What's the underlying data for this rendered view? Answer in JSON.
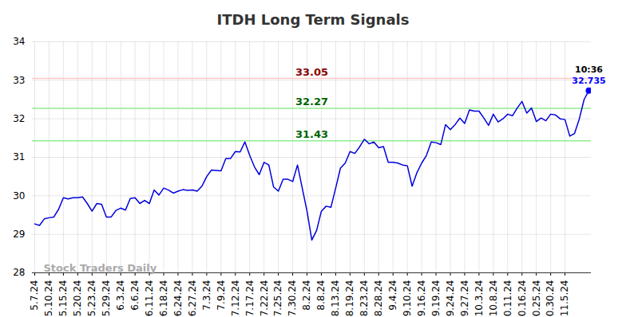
{
  "chart_data": {
    "type": "line",
    "title": "ITDH Long Term Signals",
    "color": "#0000dd",
    "grid": true,
    "categories": [
      "5.7.24",
      null,
      null,
      "5.10.24",
      null,
      null,
      "5.15.24",
      null,
      null,
      "5.20.24",
      null,
      null,
      "5.23.24",
      null,
      null,
      "5.29.24",
      null,
      null,
      "6.3.24",
      null,
      null,
      "6.6.24",
      null,
      null,
      "6.11.24",
      null,
      null,
      "6.18.24",
      null,
      null,
      "6.24.24",
      null,
      null,
      "6.27.24",
      null,
      null,
      "7.3.24",
      null,
      null,
      "7.9.24",
      null,
      null,
      "7.12.24",
      null,
      null,
      "7.17.24",
      null,
      null,
      "7.22.24",
      null,
      null,
      "7.25.24",
      null,
      null,
      "7.30.24",
      null,
      null,
      "8.2.24",
      null,
      null,
      "8.8.24",
      null,
      null,
      "8.13.24",
      null,
      null,
      "8.19.24",
      null,
      null,
      "8.23.24",
      null,
      null,
      "8.28.24",
      null,
      null,
      "9.4.24",
      null,
      null,
      "9.10.24",
      null,
      null,
      "9.16.24",
      null,
      null,
      "9.19.24",
      null,
      null,
      "9.24.24",
      null,
      null,
      "9.27.24",
      null,
      null,
      "10.3.24",
      null,
      null,
      "10.8.24",
      null,
      null,
      "10.11.24",
      null,
      null,
      "10.16.24",
      null,
      null,
      "10.25.24",
      null,
      null,
      "10.30.24",
      null,
      null,
      "11.5.24",
      null,
      null,
      null,
      null,
      null
    ],
    "values": [
      29.27,
      29.23,
      29.4,
      29.43,
      29.45,
      29.65,
      29.95,
      29.92,
      29.95,
      29.95,
      29.97,
      29.8,
      29.6,
      29.8,
      29.78,
      29.45,
      29.45,
      29.62,
      29.68,
      29.63,
      29.93,
      29.95,
      29.8,
      29.88,
      29.8,
      30.15,
      30.02,
      30.2,
      30.15,
      30.07,
      30.12,
      30.16,
      30.14,
      30.15,
      30.12,
      30.25,
      30.5,
      30.67,
      30.66,
      30.65,
      30.97,
      30.97,
      31.15,
      31.14,
      31.4,
      31.05,
      30.75,
      30.55,
      30.87,
      30.8,
      30.23,
      30.12,
      30.43,
      30.43,
      30.37,
      30.8,
      30.2,
      29.6,
      28.85,
      29.1,
      29.6,
      29.73,
      29.7,
      30.2,
      30.72,
      30.85,
      31.15,
      31.1,
      31.27,
      31.47,
      31.35,
      31.4,
      31.25,
      31.28,
      30.87,
      30.87,
      30.85,
      30.8,
      30.78,
      30.25,
      30.6,
      30.85,
      31.05,
      31.4,
      31.38,
      31.33,
      31.85,
      31.72,
      31.85,
      32.02,
      31.88,
      32.23,
      32.2,
      32.2,
      32.02,
      31.83,
      32.12,
      31.92,
      32.0,
      32.12,
      32.08,
      32.28,
      32.45,
      32.15,
      32.28,
      31.93,
      32.02,
      31.95,
      32.12,
      32.1,
      32.0,
      31.98,
      31.55,
      31.62,
      32.0,
      32.5,
      32.735
    ],
    "ylim": [
      28,
      34
    ],
    "yticks": [
      28,
      29,
      30,
      31,
      32,
      33,
      34
    ],
    "levels": [
      {
        "value": 33.05,
        "label": "33.05",
        "color": "#ffc8c8",
        "text_color": "#8b0000"
      },
      {
        "value": 32.27,
        "label": "32.27",
        "color": "#90ee90",
        "text_color": "#006400"
      },
      {
        "value": 31.43,
        "label": "31.43",
        "color": "#90ee90",
        "text_color": "#006400"
      }
    ],
    "last_point_label": "10:36",
    "last_point_color": "#0000ff",
    "watermark": "Stock Traders Daily"
  }
}
